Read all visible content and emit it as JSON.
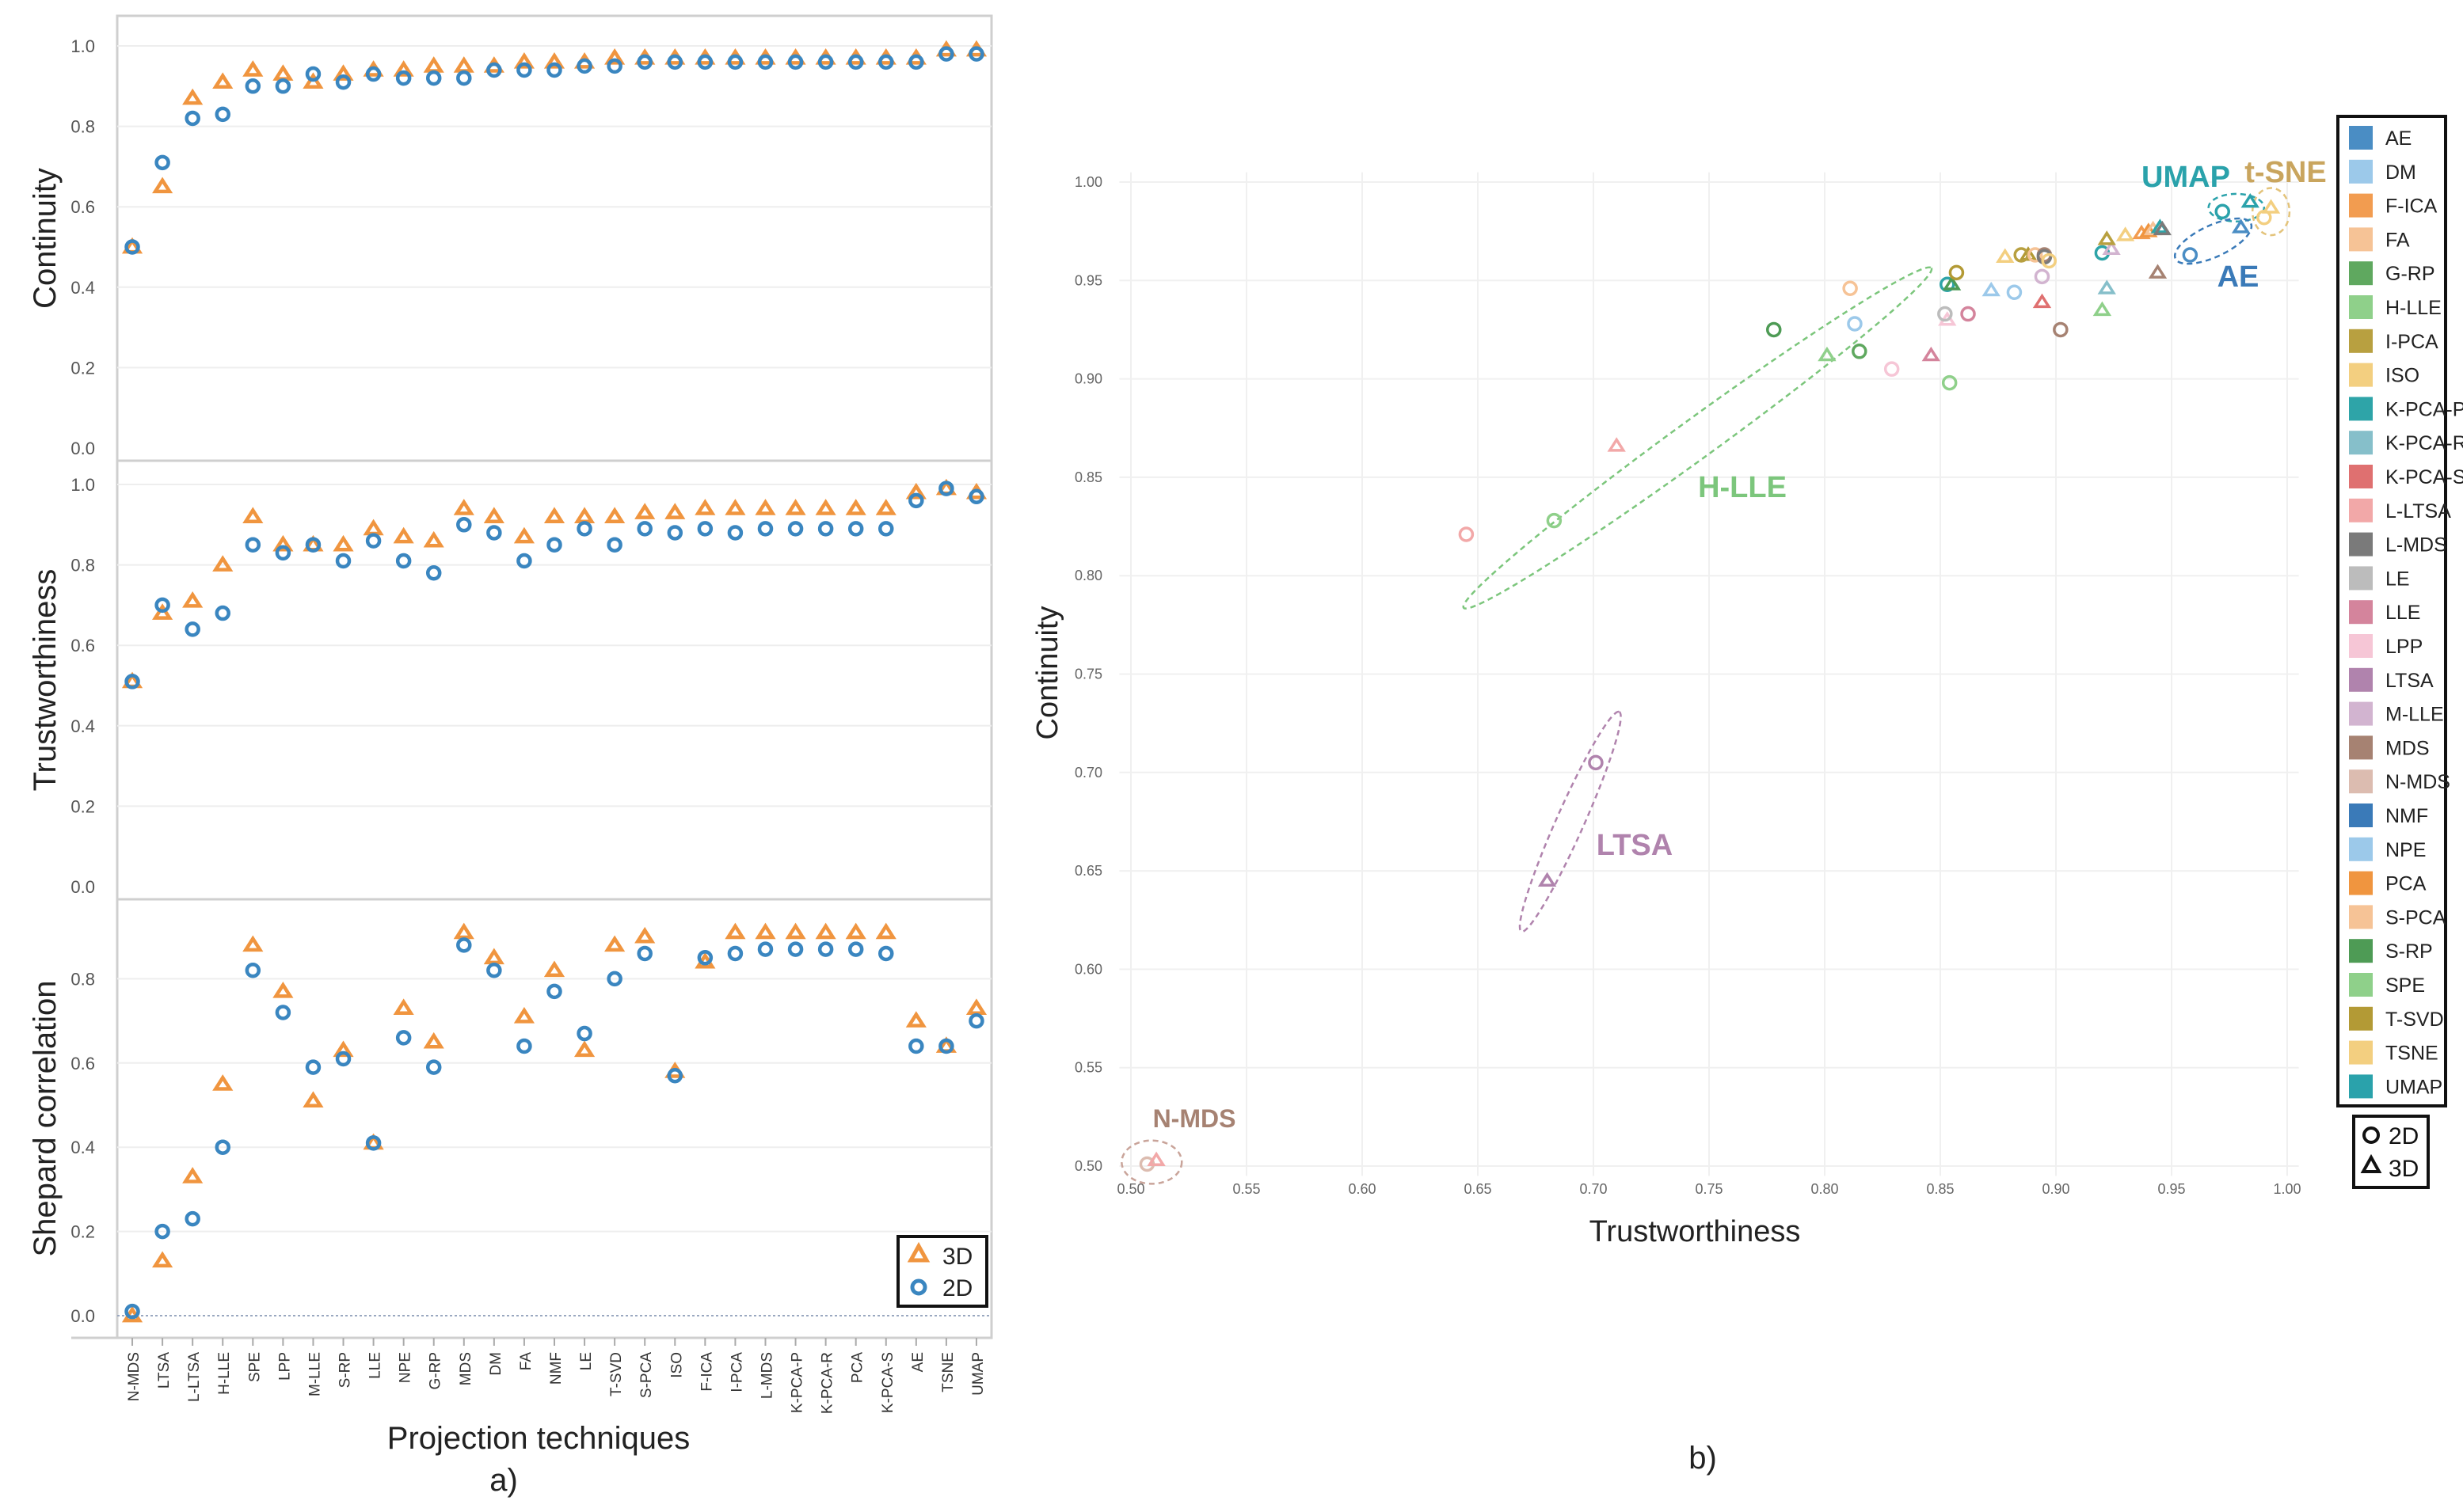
{
  "panel_a": {
    "caption": "a)",
    "xlabel": "Projection techniques",
    "categories": [
      "N-MDS",
      "LTSA",
      "L-LTSA",
      "H-LLE",
      "SPE",
      "LPP",
      "M-LLE",
      "S-RP",
      "LLE",
      "NPE",
      "G-RP",
      "MDS",
      "DM",
      "FA",
      "NMF",
      "LE",
      "T-SVD",
      "S-PCA",
      "ISO",
      "F-ICA",
      "I-PCA",
      "L-MDS",
      "K-PCA-P",
      "K-PCA-R",
      "PCA",
      "K-PCA-S",
      "AE",
      "TSNE",
      "UMAP"
    ],
    "yticks": [
      "0.0",
      "0.2",
      "0.4",
      "0.6",
      "0.8",
      "1.0"
    ],
    "legend": [
      {
        "label": "3D",
        "marker": "triangle"
      },
      {
        "label": "2D",
        "marker": "circle"
      }
    ],
    "colors": {
      "3D": "#f0953f",
      "2D": "#3a86c0"
    }
  },
  "chart_data": [
    {
      "type": "scatter",
      "title": "Continuity",
      "ylabel": "Continuity",
      "ylim": [
        0,
        1
      ],
      "series": [
        {
          "name": "3D",
          "values": [
            0.5,
            0.65,
            0.87,
            0.91,
            0.94,
            0.93,
            0.91,
            0.93,
            0.94,
            0.94,
            0.95,
            0.95,
            0.95,
            0.96,
            0.96,
            0.96,
            0.97,
            0.97,
            0.97,
            0.97,
            0.97,
            0.97,
            0.97,
            0.97,
            0.97,
            0.97,
            0.97,
            0.99,
            0.99
          ]
        },
        {
          "name": "2D",
          "values": [
            0.5,
            0.71,
            0.82,
            0.83,
            0.9,
            0.9,
            0.93,
            0.91,
            0.93,
            0.92,
            0.92,
            0.92,
            0.94,
            0.94,
            0.94,
            0.95,
            0.95,
            0.96,
            0.96,
            0.96,
            0.96,
            0.96,
            0.96,
            0.96,
            0.96,
            0.96,
            0.96,
            0.98,
            0.98
          ]
        }
      ]
    },
    {
      "type": "scatter",
      "title": "Trustworthiness",
      "ylabel": "Trustworthiness",
      "ylim": [
        0,
        1
      ],
      "series": [
        {
          "name": "3D",
          "values": [
            0.51,
            0.68,
            0.71,
            0.8,
            0.92,
            0.85,
            0.85,
            0.85,
            0.89,
            0.87,
            0.86,
            0.94,
            0.92,
            0.87,
            0.92,
            0.92,
            0.92,
            0.93,
            0.93,
            0.94,
            0.94,
            0.94,
            0.94,
            0.94,
            0.94,
            0.94,
            0.98,
            0.99,
            0.98
          ]
        },
        {
          "name": "2D",
          "values": [
            0.51,
            0.7,
            0.64,
            0.68,
            0.85,
            0.83,
            0.85,
            0.81,
            0.86,
            0.81,
            0.78,
            0.9,
            0.88,
            0.81,
            0.85,
            0.89,
            0.85,
            0.89,
            0.88,
            0.89,
            0.88,
            0.89,
            0.89,
            0.89,
            0.89,
            0.89,
            0.96,
            0.99,
            0.97
          ]
        }
      ]
    },
    {
      "type": "scatter",
      "title": "Shepard correlation",
      "ylabel": "Shepard correlation",
      "ylim": [
        0,
        1
      ],
      "series": [
        {
          "name": "3D",
          "values": [
            0.0,
            0.13,
            0.33,
            0.55,
            0.88,
            0.77,
            0.51,
            0.63,
            0.41,
            0.73,
            0.65,
            0.91,
            0.85,
            0.71,
            0.82,
            0.63,
            0.88,
            0.9,
            0.58,
            0.84,
            0.91,
            0.91,
            0.91,
            0.91,
            0.91,
            0.91,
            0.7,
            0.64,
            0.73
          ]
        },
        {
          "name": "2D",
          "values": [
            0.01,
            0.2,
            0.23,
            0.4,
            0.82,
            0.72,
            0.59,
            0.61,
            0.41,
            0.66,
            0.59,
            0.88,
            0.82,
            0.64,
            0.77,
            0.67,
            0.8,
            0.86,
            0.57,
            0.85,
            0.86,
            0.87,
            0.87,
            0.87,
            0.87,
            0.86,
            0.64,
            0.64,
            0.7
          ]
        }
      ]
    },
    {
      "type": "scatter",
      "title": "",
      "xlabel": "Trustworthiness",
      "ylabel": "Continuity",
      "xlim": [
        0.495,
        1.005
      ],
      "ylim": [
        0.495,
        1.005
      ],
      "xticks": [
        "0.50",
        "0.55",
        "0.60",
        "0.65",
        "0.70",
        "0.75",
        "0.80",
        "0.85",
        "0.90",
        "0.95",
        "1.00"
      ],
      "yticks": [
        "0.50",
        "0.55",
        "0.60",
        "0.65",
        "0.70",
        "0.75",
        "0.80",
        "0.85",
        "0.90",
        "0.95",
        "1.00"
      ],
      "caption": "b)",
      "markers": [
        {
          "label": "2D",
          "shape": "circle"
        },
        {
          "label": "3D",
          "shape": "triangle"
        }
      ],
      "legend": [
        {
          "label": "AE",
          "color": "#4a8dc4"
        },
        {
          "label": "DM",
          "color": "#9cc9ea"
        },
        {
          "label": "F-ICA",
          "color": "#f29c50"
        },
        {
          "label": "FA",
          "color": "#f6c396"
        },
        {
          "label": "G-RP",
          "color": "#5fa85f"
        },
        {
          "label": "H-LLE",
          "color": "#8fd08a"
        },
        {
          "label": "I-PCA",
          "color": "#b8a040"
        },
        {
          "label": "ISO",
          "color": "#f3cf80"
        },
        {
          "label": "K-PCA-P",
          "color": "#2ea4a8"
        },
        {
          "label": "K-PCA-R",
          "color": "#86bfca"
        },
        {
          "label": "K-PCA-S",
          "color": "#df7070"
        },
        {
          "label": "L-LTSA",
          "color": "#f2a8a8"
        },
        {
          "label": "L-MDS",
          "color": "#7a7a7a"
        },
        {
          "label": "LE",
          "color": "#bcbcbc"
        },
        {
          "label": "LLE",
          "color": "#d4849c"
        },
        {
          "label": "LPP",
          "color": "#f6c6d6"
        },
        {
          "label": "LTSA",
          "color": "#b083ad"
        },
        {
          "label": "M-LLE",
          "color": "#d2b4d0"
        },
        {
          "label": "MDS",
          "color": "#a68272"
        },
        {
          "label": "N-MDS",
          "color": "#dcbcb0"
        },
        {
          "label": "NMF",
          "color": "#3a7ab8"
        },
        {
          "label": "NPE",
          "color": "#9cc9ea"
        },
        {
          "label": "PCA",
          "color": "#f0953f"
        },
        {
          "label": "S-PCA",
          "color": "#f6c396"
        },
        {
          "label": "S-RP",
          "color": "#4e9b55"
        },
        {
          "label": "SPE",
          "color": "#8fd08a"
        },
        {
          "label": "T-SVD",
          "color": "#b39a35"
        },
        {
          "label": "TSNE",
          "color": "#f3cf80"
        },
        {
          "label": "UMAP",
          "color": "#2aa2ab"
        }
      ],
      "annotations": [
        {
          "label": "UMAP",
          "color": "#2aa2ab",
          "x": 0.985,
          "y": 0.987
        },
        {
          "label": "t-SNE",
          "color": "#c9a55e",
          "x": 0.993,
          "y": 0.985
        },
        {
          "label": "AE",
          "color": "#3a7ab8",
          "x": 0.968,
          "y": 0.97
        },
        {
          "label": "H-LLE",
          "color": "#7cc67c",
          "x": 0.745,
          "y": 0.87
        },
        {
          "label": "LTSA",
          "color": "#b083ad",
          "x": 0.69,
          "y": 0.675
        },
        {
          "label": "N-MDS",
          "color": "#a68272",
          "x": 0.51,
          "y": 0.502
        }
      ],
      "points": [
        {
          "method": "N-MDS",
          "dim": "2D",
          "x": 0.507,
          "y": 0.501
        },
        {
          "method": "L-LTSA",
          "dim": "3D",
          "x": 0.511,
          "y": 0.503
        },
        {
          "method": "L-LTSA",
          "dim": "2D",
          "x": 0.645,
          "y": 0.821
        },
        {
          "method": "L-LTSA",
          "dim": "3D",
          "x": 0.71,
          "y": 0.866
        },
        {
          "method": "LTSA",
          "dim": "3D",
          "x": 0.68,
          "y": 0.645
        },
        {
          "method": "LTSA",
          "dim": "2D",
          "x": 0.701,
          "y": 0.705
        },
        {
          "method": "H-LLE",
          "dim": "2D",
          "x": 0.683,
          "y": 0.828
        },
        {
          "method": "H-LLE",
          "dim": "3D",
          "x": 0.801,
          "y": 0.912
        },
        {
          "method": "S-RP",
          "dim": "2D",
          "x": 0.778,
          "y": 0.925
        },
        {
          "method": "G-RP",
          "dim": "2D",
          "x": 0.815,
          "y": 0.914
        },
        {
          "method": "SPE",
          "dim": "2D",
          "x": 0.854,
          "y": 0.898
        },
        {
          "method": "SPE",
          "dim": "3D",
          "x": 0.92,
          "y": 0.935
        },
        {
          "method": "FA",
          "dim": "2D",
          "x": 0.811,
          "y": 0.946
        },
        {
          "method": "DM",
          "dim": "2D",
          "x": 0.813,
          "y": 0.928
        },
        {
          "method": "LPP",
          "dim": "2D",
          "x": 0.829,
          "y": 0.905
        },
        {
          "method": "LLE",
          "dim": "3D",
          "x": 0.846,
          "y": 0.912
        },
        {
          "method": "LPP",
          "dim": "3D",
          "x": 0.853,
          "y": 0.93
        },
        {
          "method": "LE",
          "dim": "2D",
          "x": 0.852,
          "y": 0.933
        },
        {
          "method": "LLE",
          "dim": "2D",
          "x": 0.862,
          "y": 0.933
        },
        {
          "method": "K-PCA-P",
          "dim": "2D",
          "x": 0.853,
          "y": 0.948
        },
        {
          "method": "S-RP",
          "dim": "3D",
          "x": 0.855,
          "y": 0.948
        },
        {
          "method": "T-SVD",
          "dim": "2D",
          "x": 0.857,
          "y": 0.954
        },
        {
          "method": "NPE",
          "dim": "3D",
          "x": 0.872,
          "y": 0.945
        },
        {
          "method": "NPE",
          "dim": "2D",
          "x": 0.882,
          "y": 0.944
        },
        {
          "method": "ISO",
          "dim": "3D",
          "x": 0.878,
          "y": 0.962
        },
        {
          "method": "T-SVD",
          "dim": "3D",
          "x": 0.888,
          "y": 0.963
        },
        {
          "method": "I-PCA",
          "dim": "2D",
          "x": 0.885,
          "y": 0.963
        },
        {
          "method": "S-PCA",
          "dim": "2D",
          "x": 0.891,
          "y": 0.963
        },
        {
          "method": "MDS",
          "dim": "2D",
          "x": 0.895,
          "y": 0.963
        },
        {
          "method": "L-MDS",
          "dim": "2D",
          "x": 0.895,
          "y": 0.962
        },
        {
          "method": "ISO",
          "dim": "2D",
          "x": 0.897,
          "y": 0.96
        },
        {
          "method": "M-LLE",
          "dim": "2D",
          "x": 0.894,
          "y": 0.952
        },
        {
          "method": "K-PCA-S",
          "dim": "3D",
          "x": 0.894,
          "y": 0.939
        },
        {
          "method": "MDS",
          "dim": "2D",
          "x": 0.902,
          "y": 0.925
        },
        {
          "method": "K-PCA-R",
          "dim": "3D",
          "x": 0.922,
          "y": 0.946
        },
        {
          "method": "K-PCA-P",
          "dim": "2D",
          "x": 0.92,
          "y": 0.964
        },
        {
          "method": "M-LLE",
          "dim": "3D",
          "x": 0.924,
          "y": 0.966
        },
        {
          "method": "I-PCA",
          "dim": "3D",
          "x": 0.922,
          "y": 0.971
        },
        {
          "method": "TSNE",
          "dim": "3D",
          "x": 0.93,
          "y": 0.973
        },
        {
          "method": "F-ICA",
          "dim": "3D",
          "x": 0.937,
          "y": 0.974
        },
        {
          "method": "PCA",
          "dim": "3D",
          "x": 0.94,
          "y": 0.975
        },
        {
          "method": "S-PCA",
          "dim": "3D",
          "x": 0.942,
          "y": 0.976
        },
        {
          "method": "K-PCA-P",
          "dim": "3D",
          "x": 0.945,
          "y": 0.977
        },
        {
          "method": "L-MDS",
          "dim": "3D",
          "x": 0.946,
          "y": 0.976
        },
        {
          "method": "MDS",
          "dim": "3D",
          "x": 0.944,
          "y": 0.954
        },
        {
          "method": "AE",
          "dim": "2D",
          "x": 0.958,
          "y": 0.963
        },
        {
          "method": "AE",
          "dim": "3D",
          "x": 0.98,
          "y": 0.977
        },
        {
          "method": "UMAP",
          "dim": "2D",
          "x": 0.972,
          "y": 0.985
        },
        {
          "method": "UMAP",
          "dim": "3D",
          "x": 0.984,
          "y": 0.99
        },
        {
          "method": "TSNE",
          "dim": "2D",
          "x": 0.99,
          "y": 0.982
        },
        {
          "method": "TSNE",
          "dim": "3D",
          "x": 0.993,
          "y": 0.987
        }
      ]
    }
  ]
}
